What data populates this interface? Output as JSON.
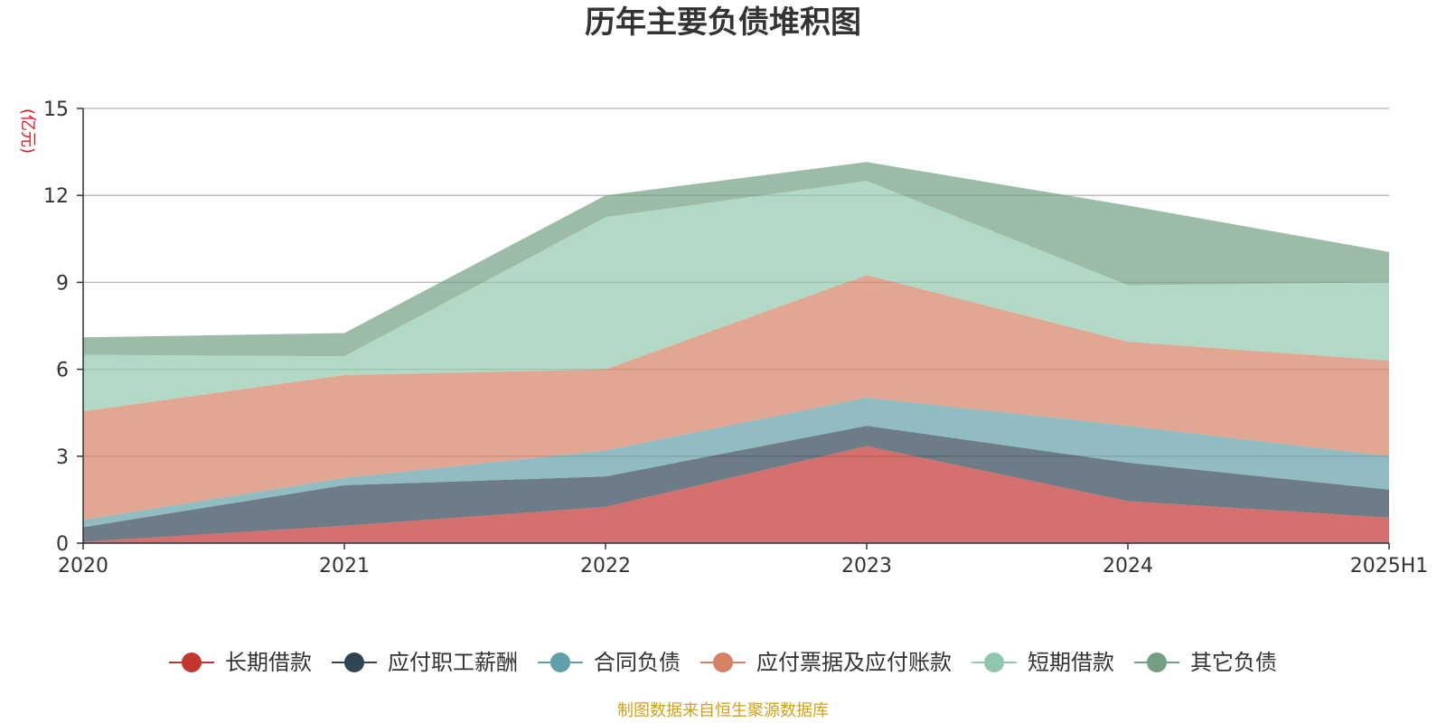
{
  "chart_data": {
    "type": "area",
    "stacked": true,
    "title": "历年主要负债堆积图",
    "ylabel": "(亿元)",
    "categories": [
      "2020",
      "2021",
      "2022",
      "2023",
      "2024",
      "2025H1"
    ],
    "ylim": [
      0,
      15
    ],
    "yticks": [
      0,
      3,
      6,
      9,
      12,
      15
    ],
    "grid": true,
    "legend_position": "bottom",
    "series": [
      {
        "name": "长期借款",
        "color": "#c23531",
        "values": [
          0.05,
          0.6,
          1.25,
          3.35,
          1.45,
          0.88
        ]
      },
      {
        "name": "应付职工薪酬",
        "color": "#2f4554",
        "values": [
          0.5,
          1.4,
          1.05,
          0.7,
          1.33,
          0.97
        ]
      },
      {
        "name": "合同负债",
        "color": "#61a0a8",
        "values": [
          0.25,
          0.25,
          0.9,
          0.97,
          1.27,
          1.15
        ]
      },
      {
        "name": "应付票据及应付账款",
        "color": "#d48265",
        "values": [
          3.75,
          3.55,
          2.8,
          4.23,
          2.9,
          3.3
        ]
      },
      {
        "name": "短期借款",
        "color": "#91c7ae",
        "values": [
          1.95,
          0.65,
          5.25,
          3.25,
          1.95,
          2.7
        ]
      },
      {
        "name": "其它负债",
        "color": "#749f83",
        "values": [
          0.6,
          0.8,
          0.75,
          0.65,
          2.75,
          1.05
        ]
      }
    ],
    "source": "制图数据来自恒生聚源数据库"
  }
}
